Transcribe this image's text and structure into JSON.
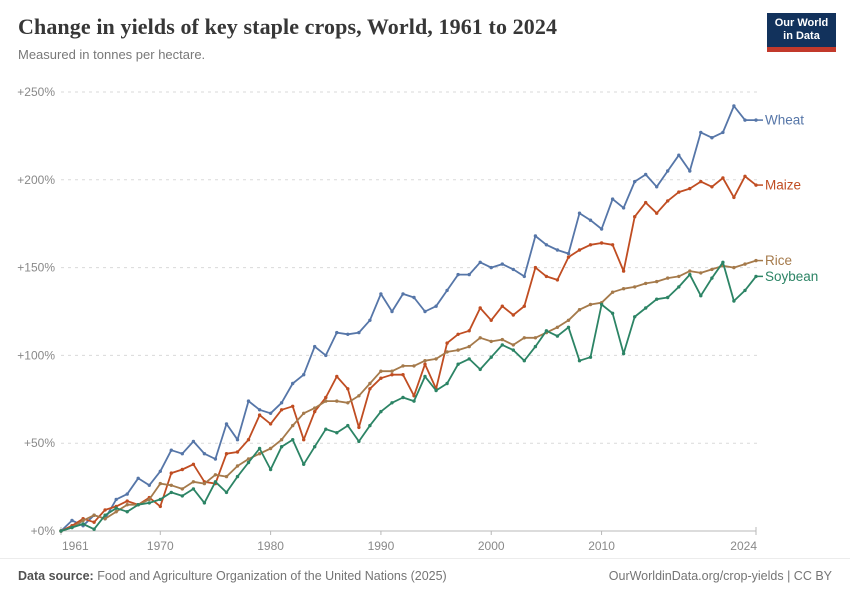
{
  "header": {
    "title": "Change in yields of key staple crops, World, 1961 to 2024",
    "subtitle": "Measured in tonnes per hectare.",
    "logo": {
      "line1": "Our World",
      "line2": "in Data",
      "bg_color": "#12325C",
      "accent_color": "#C2392B"
    }
  },
  "footer": {
    "source_label": "Data source:",
    "source_text": " Food and Agriculture Organization of the United Nations (2025)",
    "link_text": "OurWorldinData.org/crop-yields | CC BY"
  },
  "chart_data": {
    "type": "line",
    "title": "Change in yields of key staple crops, World, 1961 to 2024",
    "subtitle": "Measured in tonnes per hectare.",
    "xlabel": "",
    "ylabel": "",
    "xlim": [
      1961,
      2024
    ],
    "ylim": [
      0,
      250
    ],
    "grid": "horizontal-dashed",
    "legend_position": "line-end-labels",
    "grid_color": "#dadada",
    "axis_color": "#b8b8b8",
    "tick_label_color": "#898989",
    "y_ticks": [
      {
        "value": 0,
        "label": "+0%"
      },
      {
        "value": 50,
        "label": "+50%"
      },
      {
        "value": 100,
        "label": "+100%"
      },
      {
        "value": 150,
        "label": "+150%"
      },
      {
        "value": 200,
        "label": "+200%"
      },
      {
        "value": 250,
        "label": "+250%"
      }
    ],
    "x_ticks": [
      {
        "value": 1961,
        "label": "1961"
      },
      {
        "value": 1970,
        "label": "1970"
      },
      {
        "value": 1980,
        "label": "1980"
      },
      {
        "value": 1990,
        "label": "1990"
      },
      {
        "value": 2000,
        "label": "2000"
      },
      {
        "value": 2010,
        "label": "2010"
      },
      {
        "value": 2024,
        "label": "2024"
      }
    ],
    "x": [
      1961,
      1962,
      1963,
      1964,
      1965,
      1966,
      1967,
      1968,
      1969,
      1970,
      1971,
      1972,
      1973,
      1974,
      1975,
      1976,
      1977,
      1978,
      1979,
      1980,
      1981,
      1982,
      1983,
      1984,
      1985,
      1986,
      1987,
      1988,
      1989,
      1990,
      1991,
      1992,
      1993,
      1994,
      1995,
      1996,
      1997,
      1998,
      1999,
      2000,
      2001,
      2002,
      2003,
      2004,
      2005,
      2006,
      2007,
      2008,
      2009,
      2010,
      2011,
      2012,
      2013,
      2014,
      2015,
      2016,
      2017,
      2018,
      2019,
      2020,
      2021,
      2022,
      2023,
      2024
    ],
    "series": [
      {
        "name": "Wheat",
        "color": "#5676A8",
        "values": [
          0,
          6,
          3,
          9,
          7,
          18,
          21,
          30,
          26,
          34,
          46,
          44,
          51,
          44,
          41,
          61,
          52,
          74,
          69,
          67,
          73,
          84,
          89,
          105,
          100,
          113,
          112,
          113,
          120,
          135,
          125,
          135,
          133,
          125,
          128,
          137,
          146,
          146,
          153,
          150,
          152,
          149,
          145,
          168,
          163,
          160,
          158,
          181,
          177,
          172,
          189,
          184,
          199,
          203,
          196,
          205,
          214,
          205,
          227,
          224,
          227,
          242,
          234,
          234
        ]
      },
      {
        "name": "Maize",
        "color": "#C04D22",
        "values": [
          0,
          3,
          7,
          5,
          12,
          14,
          17,
          15,
          19,
          14,
          33,
          35,
          38,
          28,
          27,
          44,
          45,
          52,
          66,
          61,
          69,
          71,
          52,
          68,
          76,
          88,
          81,
          59,
          81,
          87,
          89,
          89,
          77,
          95,
          81,
          107,
          112,
          114,
          127,
          120,
          128,
          123,
          128,
          150,
          145,
          143,
          156,
          160,
          163,
          164,
          163,
          148,
          179,
          187,
          181,
          188,
          193,
          195,
          199,
          196,
          201,
          190,
          202,
          197
        ]
      },
      {
        "name": "Rice",
        "color": "#A57A4B",
        "values": [
          0,
          2,
          6,
          9,
          7,
          11,
          15,
          15,
          18,
          27,
          26,
          24,
          28,
          27,
          32,
          31,
          37,
          41,
          44,
          47,
          52,
          60,
          67,
          70,
          74,
          74,
          73,
          77,
          84,
          91,
          91,
          94,
          94,
          97,
          98,
          102,
          103,
          105,
          110,
          108,
          109,
          106,
          110,
          110,
          113,
          116,
          120,
          126,
          129,
          130,
          136,
          138,
          139,
          141,
          142,
          144,
          145,
          148,
          147,
          149,
          151,
          150,
          152,
          154
        ]
      },
      {
        "name": "Soybean",
        "color": "#2C8465",
        "values": [
          0,
          2,
          4,
          1,
          9,
          13,
          11,
          15,
          16,
          18,
          22,
          20,
          24,
          16,
          28,
          22,
          31,
          39,
          47,
          35,
          48,
          52,
          38,
          48,
          58,
          56,
          60,
          51,
          60,
          68,
          73,
          76,
          74,
          88,
          80,
          84,
          95,
          98,
          92,
          99,
          106,
          103,
          97,
          105,
          114,
          111,
          116,
          97,
          99,
          129,
          124,
          101,
          122,
          127,
          132,
          133,
          139,
          146,
          134,
          144,
          153,
          131,
          137,
          145
        ]
      }
    ]
  }
}
